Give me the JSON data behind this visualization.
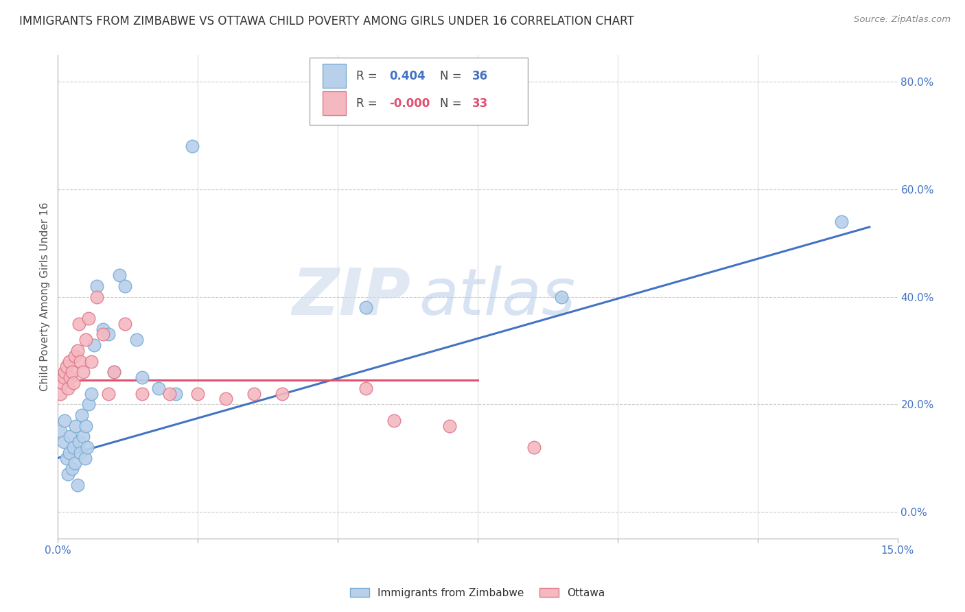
{
  "title": "IMMIGRANTS FROM ZIMBABWE VS OTTAWA CHILD POVERTY AMONG GIRLS UNDER 16 CORRELATION CHART",
  "source": "Source: ZipAtlas.com",
  "ylabel": "Child Poverty Among Girls Under 16",
  "xmin": 0.0,
  "xmax": 15.0,
  "ymin": -5.0,
  "ymax": 85.0,
  "right_yticks": [
    0.0,
    20.0,
    40.0,
    60.0,
    80.0
  ],
  "watermark_zip": "ZIP",
  "watermark_atlas": "atlas",
  "series1_color": "#b8d0ea",
  "series1_edge": "#7aadd4",
  "series1_line": "#4472c4",
  "series2_color": "#f4b8c1",
  "series2_edge": "#e07a8a",
  "series2_line": "#e05070",
  "blue_scatter_x": [
    0.05,
    0.1,
    0.12,
    0.15,
    0.18,
    0.2,
    0.22,
    0.25,
    0.28,
    0.3,
    0.32,
    0.35,
    0.38,
    0.4,
    0.42,
    0.45,
    0.48,
    0.5,
    0.52,
    0.55,
    0.6,
    0.65,
    0.7,
    0.8,
    0.9,
    1.0,
    1.1,
    1.2,
    1.4,
    1.5,
    1.8,
    2.1,
    2.4,
    5.5,
    9.0,
    14.0
  ],
  "blue_scatter_y": [
    15.0,
    13.0,
    17.0,
    10.0,
    7.0,
    11.0,
    14.0,
    8.0,
    12.0,
    9.0,
    16.0,
    5.0,
    13.0,
    11.0,
    18.0,
    14.0,
    10.0,
    16.0,
    12.0,
    20.0,
    22.0,
    31.0,
    42.0,
    34.0,
    33.0,
    26.0,
    44.0,
    42.0,
    32.0,
    25.0,
    23.0,
    22.0,
    68.0,
    38.0,
    40.0,
    54.0
  ],
  "pink_scatter_x": [
    0.05,
    0.08,
    0.1,
    0.12,
    0.15,
    0.18,
    0.2,
    0.22,
    0.25,
    0.28,
    0.3,
    0.35,
    0.38,
    0.4,
    0.45,
    0.5,
    0.55,
    0.6,
    0.7,
    0.8,
    0.9,
    1.0,
    1.2,
    1.5,
    2.0,
    2.5,
    3.0,
    3.5,
    4.0,
    5.5,
    6.0,
    7.0,
    8.5
  ],
  "pink_scatter_y": [
    22.0,
    24.0,
    25.0,
    26.0,
    27.0,
    23.0,
    28.0,
    25.0,
    26.0,
    24.0,
    29.0,
    30.0,
    35.0,
    28.0,
    26.0,
    32.0,
    36.0,
    28.0,
    40.0,
    33.0,
    22.0,
    26.0,
    35.0,
    22.0,
    22.0,
    22.0,
    21.0,
    22.0,
    22.0,
    23.0,
    17.0,
    16.0,
    12.0
  ],
  "blue_line_x": [
    0.0,
    14.5
  ],
  "blue_line_y": [
    10.0,
    53.0
  ],
  "pink_line_x": [
    0.0,
    7.5
  ],
  "pink_line_y": [
    24.5,
    24.5
  ],
  "grid_color": "#cccccc",
  "bg_color": "#ffffff",
  "title_color": "#333333",
  "axis_label_color": "#555555",
  "right_tick_color": "#4472c4",
  "xtick_color": "#4472c4"
}
